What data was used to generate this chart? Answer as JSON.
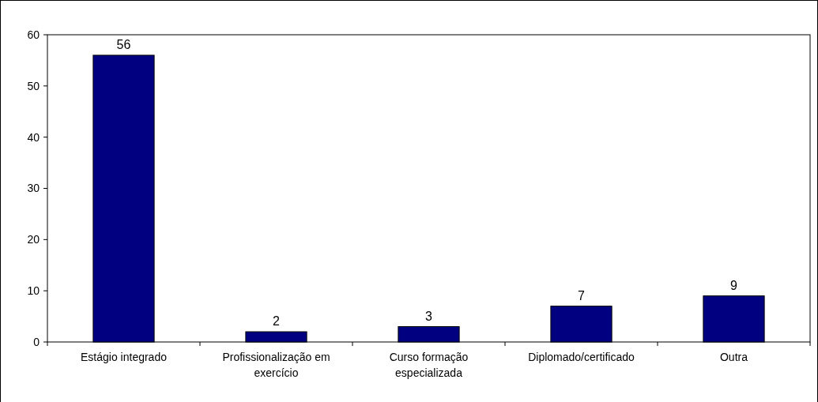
{
  "chart_data": {
    "type": "bar",
    "categories": [
      "Estágio integrado",
      "Profissionalização em exercício",
      "Curso formação especializada",
      "Diplomado/certificado",
      "Outra"
    ],
    "values": [
      56,
      2,
      3,
      7,
      9
    ],
    "color": "#000080",
    "ylim": [
      0,
      60
    ],
    "yticks": [
      0,
      10,
      20,
      30,
      40,
      50,
      60
    ],
    "grid": false,
    "data_labels": true
  }
}
